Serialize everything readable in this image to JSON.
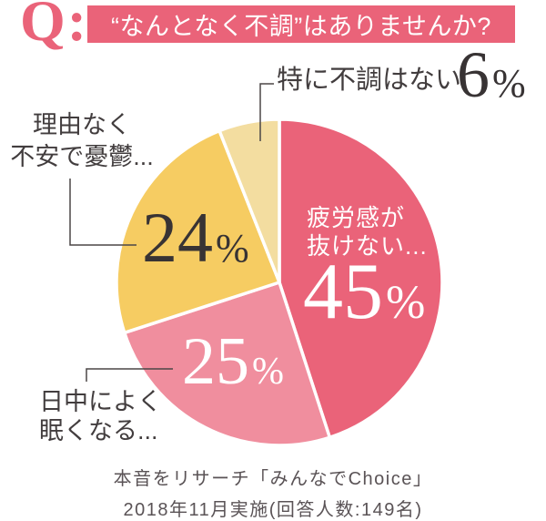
{
  "question": {
    "prefix": "Q:",
    "text": "“なんとなく不調”はありませんか?"
  },
  "chart_data": {
    "type": "pie",
    "title": "“なんとなく不調”はありませんか?",
    "unit": "%",
    "direction": "clockwise",
    "start_angle": "12-oclock",
    "segments": [
      {
        "label": "疲労感が抜けない...",
        "value": 45,
        "color": "#ea6379"
      },
      {
        "label": "日中によく眠くなる...",
        "value": 25,
        "color": "#f08e9e"
      },
      {
        "label": "理由なく不安で憂鬱...",
        "value": 24,
        "color": "#f6cc62"
      },
      {
        "label": "特に不調はない",
        "value": 6,
        "color": "#f3dda0"
      }
    ]
  },
  "annotations": {
    "fatigue": {
      "line1": "疲労感が",
      "line2": "抜けない..."
    },
    "sleepy": {
      "line1": "日中によく",
      "line2": "眠くなる..."
    },
    "anxious": {
      "line1": "理由なく",
      "line2": "不安で憂鬱..."
    },
    "none": {
      "label": "特に不調はない"
    }
  },
  "footer": {
    "line1": "本音をリサーチ「みんなでChoice」",
    "line2": "2018年11月実施(回答人数:149名)"
  },
  "colors": {
    "accent_pink": "#ea6379",
    "light_pink": "#f08e9e",
    "yellow": "#f6cc62",
    "cream": "#f3dda0",
    "text_dark": "#423d3e",
    "number_dark": "#383334",
    "footer_text": "#5a5356",
    "leader_line": "#4b4647",
    "white": "#ffffff"
  }
}
